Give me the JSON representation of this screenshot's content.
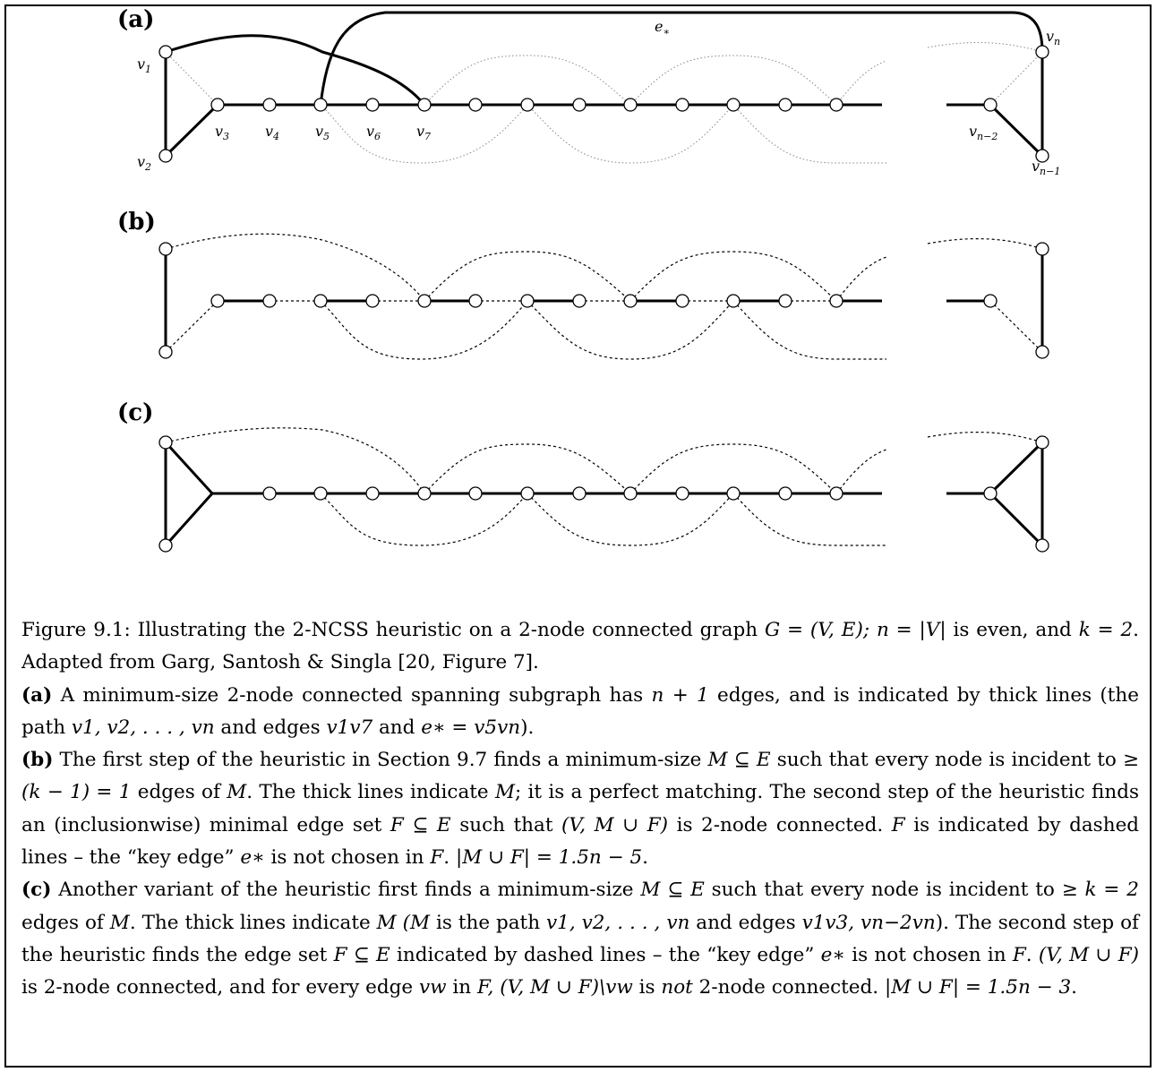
{
  "figure": {
    "panels": [
      {
        "id": "a",
        "label": "(a)"
      },
      {
        "id": "b",
        "label": "(b)"
      },
      {
        "id": "c",
        "label": "(c)"
      }
    ],
    "vertex_labels": {
      "v1": {
        "base": "v",
        "sub": "1"
      },
      "v2": {
        "base": "v",
        "sub": "2"
      },
      "v3": {
        "base": "v",
        "sub": "3"
      },
      "v4": {
        "base": "v",
        "sub": "4"
      },
      "v5": {
        "base": "v",
        "sub": "5"
      },
      "v6": {
        "base": "v",
        "sub": "6"
      },
      "v7": {
        "base": "v",
        "sub": "7"
      },
      "vn": {
        "base": "v",
        "sub": "n"
      },
      "vn2": {
        "base": "v",
        "sub": "n−2"
      },
      "vn1": {
        "base": "v",
        "sub": "n−1"
      },
      "estar": {
        "base": "e",
        "sub": "∗"
      }
    }
  },
  "caption": {
    "intro_1": "Figure 9.1: Illustrating the 2-NCSS heuristic on a 2-node connected graph ",
    "intro_math_1": "G = (V, E); n = |V|",
    "intro_2": " is even, and ",
    "intro_math_2": "k = 2",
    "intro_3": ". Adapted from Garg, Santosh & Singla [20, Figure 7].",
    "a_label": "(a)",
    "a_1": "  A minimum-size 2-node connected spanning subgraph has ",
    "a_math_1": "n + 1",
    "a_2": " edges, and is indicated by thick lines (the path ",
    "a_math_2": "v1, v2, . . . , vn",
    "a_3": " and edges ",
    "a_math_3": "v1v7",
    "a_4": " and ",
    "a_math_4": "e∗ = v5vn",
    "a_5": ").",
    "b_label": "(b)",
    "b_1": "  The first step of the heuristic in Section 9.7 finds a minimum-size ",
    "b_math_1": "M ⊆ E",
    "b_2": " such that every node is incident to ",
    "b_math_2": "≥ (k − 1) = 1",
    "b_3": " edges of ",
    "b_math_3": "M",
    "b_4": ". The thick lines indicate ",
    "b_math_4": "M",
    "b_5": "; it is a perfect matching. The second step of the heuristic finds an (inclusionwise) minimal edge set ",
    "b_math_5": "F ⊆ E",
    "b_6": " such that ",
    "b_math_6": "(V, M ∪ F)",
    "b_7": " is 2-node connected.  ",
    "b_math_7": "F",
    "b_8": " is indicated by dashed lines – the “key edge” ",
    "b_math_8": "e∗",
    "b_9": " is not chosen in ",
    "b_math_9": "F",
    "b_10": ". ",
    "b_math_10": "|M ∪ F| = 1.5n − 5",
    "b_11": ".",
    "c_label": "(c)",
    "c_1": "  Another variant of the heuristic first finds a minimum-size ",
    "c_math_1": "M ⊆ E",
    "c_2": " such that every node is incident to ",
    "c_math_2": "≥ k = 2",
    "c_3": " edges of ",
    "c_math_3": "M",
    "c_4": ". The thick lines indicate ",
    "c_math_4": "M (M",
    "c_5": " is the path ",
    "c_math_5": "v1, v2, . . . , vn",
    "c_6": " and edges ",
    "c_math_6": "v1v3,  vn−2vn",
    "c_7": "). The second step of the heuristic finds the edge set ",
    "c_math_7": "F ⊆ E",
    "c_8": " indicated by dashed lines – the “key edge” ",
    "c_math_8": "e∗",
    "c_9": " is not chosen in ",
    "c_math_9": "F",
    "c_10": ". ",
    "c_math_10": "(V, M ∪ F)",
    "c_11": " is 2-node connected, and for every edge ",
    "c_math_11": "vw",
    "c_12": " in ",
    "c_math_12": "F, (V, M ∪ F)\\vw",
    "c_13": " is ",
    "c_not": "not",
    "c_14": " 2-node connected. ",
    "c_math_14": "|M ∪ F| = 1.5n − 3",
    "c_15": "."
  }
}
